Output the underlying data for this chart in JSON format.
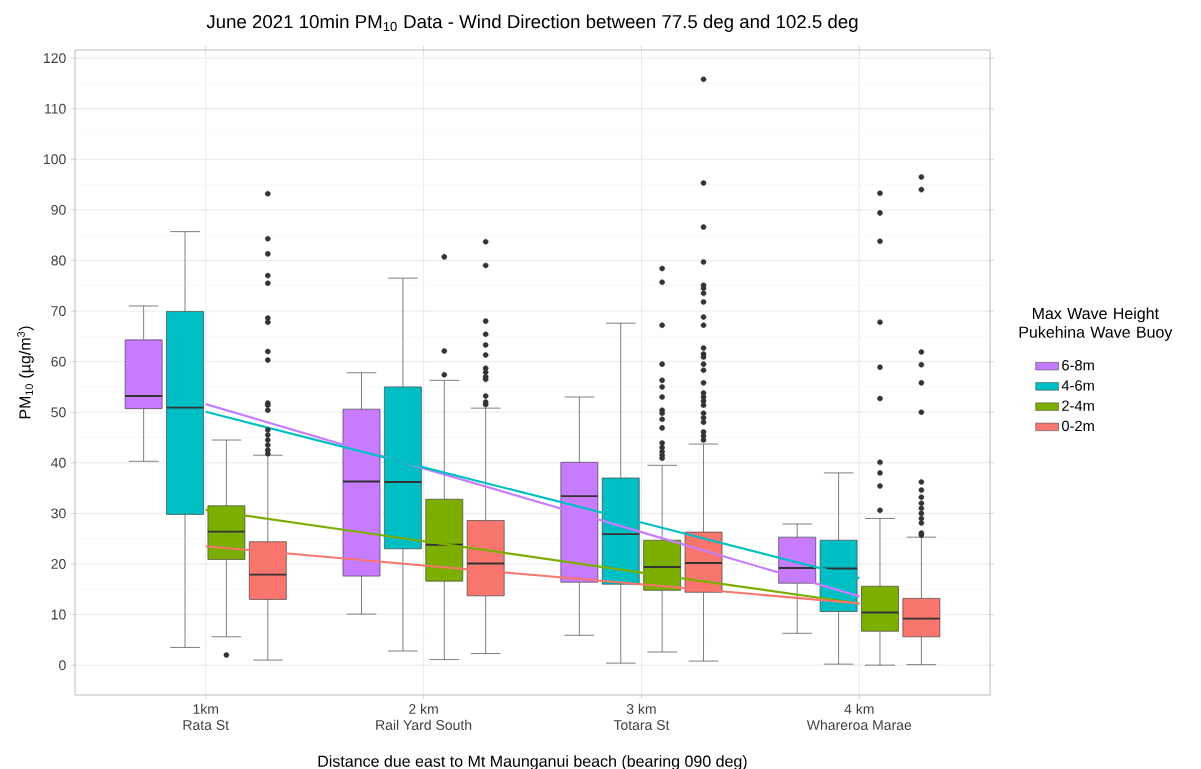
{
  "chart_data": {
    "type": "box",
    "title": "June 2021 10min PM$_{10}$ Data - Wind Direction between 77.5 deg and 102.5 deg",
    "xlabel": "Distance due east to Mt Maunganui beach (bearing 090 deg)",
    "ylabel": "PM$_{10}$ (µg/m$^{3}$)",
    "legend_title": "Max Wave Height\nPukehina Wave Buoy",
    "categories": [
      "1km\nRata St",
      "2 km\nRail Yard South",
      "3 km\nTotara St",
      "4 km\nWhareroa Marae"
    ],
    "ylim": [
      -5.9,
      121.6
    ],
    "yticks": [
      0,
      10,
      20,
      30,
      40,
      50,
      60,
      70,
      80,
      90,
      100,
      110,
      120
    ],
    "grid": true,
    "legend": "right",
    "series": [
      {
        "name": "6-8m",
        "color": "#c77cff",
        "boxes": [
          {
            "low": 40.3,
            "q1": 50.7,
            "median": 53.2,
            "q3": 64.3,
            "high": 71.0
          },
          {
            "low": 10.1,
            "q1": 17.6,
            "median": 36.3,
            "q3": 50.6,
            "high": 57.8
          },
          {
            "low": 5.9,
            "q1": 16.4,
            "median": 33.4,
            "q3": 40.1,
            "high": 53.0
          },
          {
            "low": 6.3,
            "q1": 16.2,
            "median": 19.2,
            "q3": 25.3,
            "high": 27.9
          }
        ]
      },
      {
        "name": "4-6m",
        "color": "#00bfc4",
        "boxes": [
          {
            "low": 3.5,
            "q1": 29.8,
            "median": 50.9,
            "q3": 69.9,
            "high": 85.7
          },
          {
            "low": 2.8,
            "q1": 23.0,
            "median": 36.2,
            "q3": 55.0,
            "high": 76.5
          },
          {
            "low": 0.4,
            "q1": 16.0,
            "median": 25.9,
            "q3": 37.0,
            "high": 67.6
          },
          {
            "low": 0.2,
            "q1": 10.6,
            "median": 19.1,
            "q3": 24.7,
            "high": 38.0
          }
        ]
      },
      {
        "name": "2-4m",
        "color": "#7cae00",
        "boxes": [
          {
            "low": 5.6,
            "q1": 20.9,
            "median": 26.4,
            "q3": 31.5,
            "high": 44.5,
            "outliers": [
              2.0
            ]
          },
          {
            "low": 1.1,
            "q1": 16.6,
            "median": 23.8,
            "q3": 32.8,
            "high": 56.3,
            "outliers": [
              80.7,
              62.1,
              57.4
            ]
          },
          {
            "low": 2.6,
            "q1": 14.8,
            "median": 19.4,
            "q3": 24.7,
            "high": 39.5,
            "outliers": [
              78.4,
              75.7,
              67.2,
              59.5,
              56.3,
              55.0,
              53.0,
              50.4,
              49.8,
              48.6,
              46.9,
              43.9,
              43.0,
              42.2,
              41.5,
              40.9
            ]
          },
          {
            "low": 0,
            "q1": 6.7,
            "median": 10.4,
            "q3": 15.6,
            "high": 29.0,
            "outliers": [
              93.3,
              89.4,
              83.8,
              67.8,
              58.9,
              52.7,
              40.1,
              38.0,
              35.4,
              30.6
            ]
          }
        ]
      },
      {
        "name": "0-2m",
        "color": "#f8766d",
        "boxes": [
          {
            "low": 1.0,
            "q1": 13.0,
            "median": 17.9,
            "q3": 24.4,
            "high": 41.5,
            "outliers": [
              93.2,
              84.3,
              81.3,
              77.0,
              75.5,
              68.6,
              67.8,
              62.0,
              60.3,
              51.8,
              51.4,
              50.4,
              46.5,
              45.5,
              44.5,
              43.5,
              42.5,
              41.8
            ]
          },
          {
            "low": 2.3,
            "q1": 13.7,
            "median": 20.1,
            "q3": 28.6,
            "high": 50.8,
            "outliers": [
              83.7,
              79.0,
              68.0,
              65.4,
              63.3,
              61.3,
              58.7,
              57.9,
              57.0,
              56.5,
              53.2,
              52.0,
              51.5
            ]
          },
          {
            "low": 0.8,
            "q1": 14.4,
            "median": 20.2,
            "q3": 26.3,
            "high": 43.7,
            "outliers": [
              115.8,
              95.3,
              86.6,
              79.7,
              75.1,
              74.5,
              73.5,
              71.8,
              68.8,
              67.2,
              62.7,
              61.5,
              60.9,
              59.5,
              58.3,
              55.8,
              53.8,
              53.0,
              52.2,
              51.4,
              49.8,
              48.9,
              48.0,
              46.1,
              45.3,
              44.5
            ]
          },
          {
            "low": 0.1,
            "q1": 5.6,
            "median": 9.2,
            "q3": 13.2,
            "high": 25.3,
            "outliers": [
              96.5,
              94.0,
              61.9,
              59.4,
              55.8,
              50.0,
              36.2,
              34.6,
              33.2,
              32.0,
              31.0,
              30.0,
              29.0,
              28.1,
              26.1,
              25.7
            ]
          }
        ]
      },
      {
        "type": "line",
        "color": "#c77cff",
        "values": [
          51.6,
          38.9,
          26.3,
          13.6
        ]
      },
      {
        "type": "line",
        "color": "#00bfc4",
        "values": [
          50.1,
          39.1,
          28.2,
          17.2
        ]
      },
      {
        "type": "line",
        "color": "#7cae00",
        "values": [
          30.7,
          24.5,
          18.3,
          12.2
        ]
      },
      {
        "type": "line",
        "color": "#f8766d",
        "values": [
          23.5,
          19.7,
          16.0,
          12.2
        ]
      }
    ]
  }
}
